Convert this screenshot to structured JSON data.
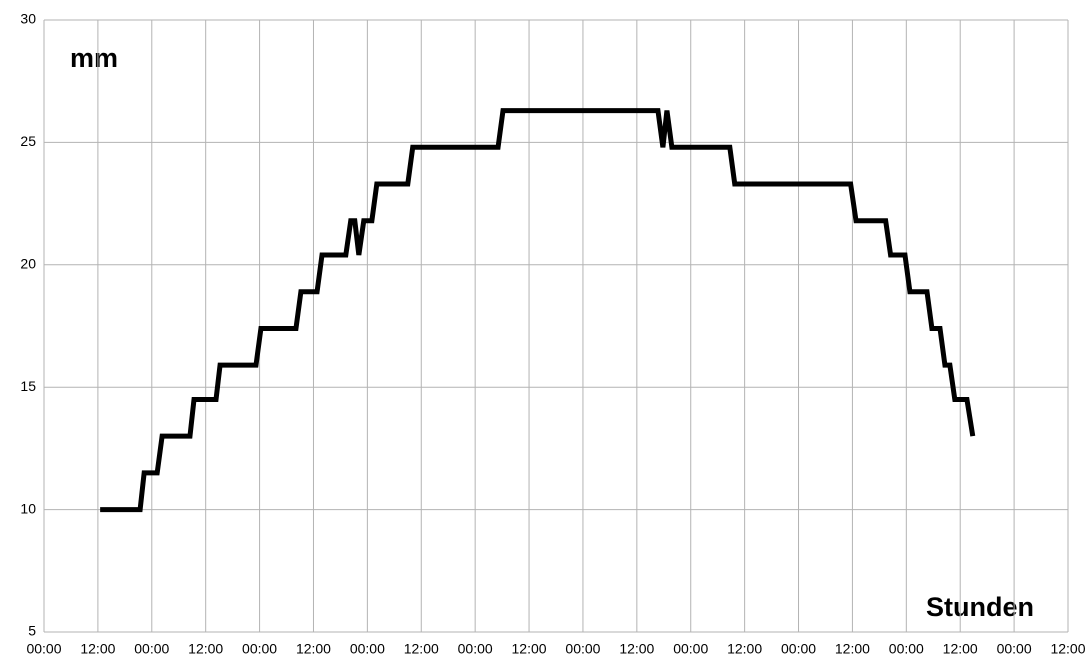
{
  "chart_data": {
    "type": "line",
    "y_label": "mm",
    "x_label": "Stunden",
    "x": [
      12.5,
      21.4,
      22.3,
      25.2,
      26.3,
      32.5,
      33.4,
      38.3,
      39.2,
      47.2,
      48.3,
      56.1,
      57.2,
      60.8,
      61.9,
      67.2,
      68.3,
      69.2,
      70.1,
      71.2,
      73.0,
      74.1,
      81.0,
      82.1,
      101.1,
      102.2,
      136.7,
      137.8,
      138.7,
      139.8,
      152.7,
      153.8,
      179.6,
      180.8,
      187.4,
      188.5,
      191.7,
      192.8,
      196.6,
      197.7,
      199.5,
      200.6,
      201.7,
      202.8,
      205.5,
      206.8
    ],
    "series": [
      {
        "name": "mm",
        "color": "#000000",
        "values": [
          10.0,
          10.0,
          11.5,
          11.5,
          13.0,
          13.0,
          14.5,
          14.5,
          15.9,
          15.9,
          17.4,
          17.4,
          18.9,
          18.9,
          20.4,
          20.4,
          21.8,
          21.8,
          20.4,
          21.8,
          21.8,
          23.3,
          23.3,
          24.8,
          24.8,
          26.3,
          26.3,
          24.8,
          26.3,
          24.8,
          24.8,
          23.3,
          23.3,
          21.8,
          21.8,
          20.4,
          20.4,
          18.9,
          18.9,
          17.4,
          17.4,
          15.9,
          15.9,
          14.5,
          14.5,
          13.0
        ]
      }
    ],
    "xlim": [
      0,
      228
    ],
    "xticks": [
      {
        "value": 0,
        "label": "00:00"
      },
      {
        "value": 12,
        "label": "12:00"
      },
      {
        "value": 24,
        "label": "00:00"
      },
      {
        "value": 36,
        "label": "12:00"
      },
      {
        "value": 48,
        "label": "00:00"
      },
      {
        "value": 60,
        "label": "12:00"
      },
      {
        "value": 72,
        "label": "00:00"
      },
      {
        "value": 84,
        "label": "12:00"
      },
      {
        "value": 96,
        "label": "00:00"
      },
      {
        "value": 108,
        "label": "12:00"
      },
      {
        "value": 120,
        "label": "00:00"
      },
      {
        "value": 132,
        "label": "12:00"
      },
      {
        "value": 144,
        "label": "00:00"
      },
      {
        "value": 156,
        "label": "12:00"
      },
      {
        "value": 168,
        "label": "00:00"
      },
      {
        "value": 180,
        "label": "12:00"
      },
      {
        "value": 192,
        "label": "00:00"
      },
      {
        "value": 204,
        "label": "12:00"
      },
      {
        "value": 216,
        "label": "00:00"
      },
      {
        "value": 228,
        "label": "12:00"
      }
    ],
    "ylim": [
      5,
      30
    ],
    "yticks": [
      5,
      10,
      15,
      20,
      25,
      30
    ],
    "grid": true
  }
}
